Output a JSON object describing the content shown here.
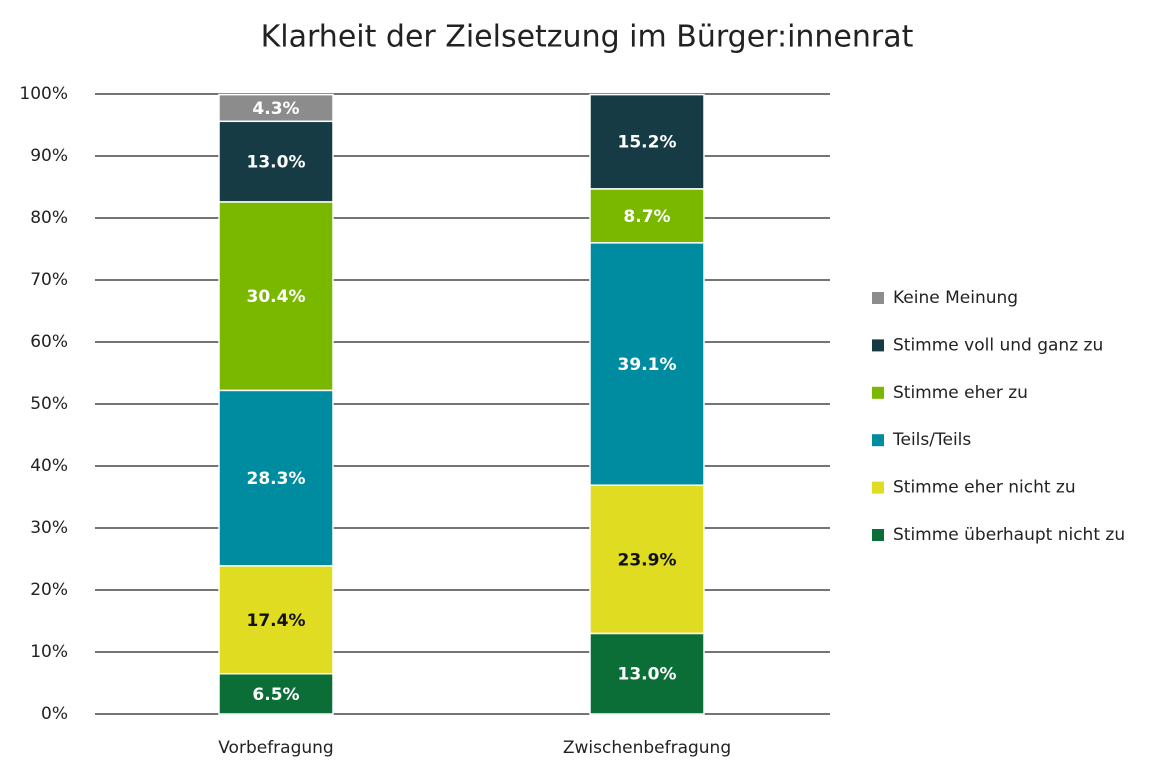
{
  "chart_data": {
    "type": "stacked_bar",
    "title": "Klarheit der Zielsetzung im Bürger:innenrat",
    "categories": [
      "Vorbefragung",
      "Zwischenbefragung"
    ],
    "ylim": [
      0,
      100
    ],
    "yticks": [
      {
        "value": 0,
        "label": "0%"
      },
      {
        "value": 10,
        "label": "10%"
      },
      {
        "value": 20,
        "label": "20%"
      },
      {
        "value": 30,
        "label": "30%"
      },
      {
        "value": 40,
        "label": "40%"
      },
      {
        "value": 50,
        "label": "50%"
      },
      {
        "value": 60,
        "label": "60%"
      },
      {
        "value": 70,
        "label": "70%"
      },
      {
        "value": 80,
        "label": "80%"
      },
      {
        "value": 90,
        "label": "90%"
      },
      {
        "value": 100,
        "label": "100%"
      }
    ],
    "grid": true,
    "legend": "right",
    "series": [
      {
        "name": "Stimme überhaupt nicht zu",
        "color": "#0b6e37",
        "label_color": "#ffffff",
        "values": [
          6.5,
          13.0
        ],
        "value_labels": [
          "6.5%",
          "13.0%"
        ]
      },
      {
        "name": "Stimme eher nicht zu",
        "color": "#dfdc22",
        "label_color": "#111111",
        "values": [
          17.4,
          23.9
        ],
        "value_labels": [
          "17.4%",
          "23.9%"
        ]
      },
      {
        "name": "Teils/Teils",
        "color": "#008ca0",
        "label_color": "#ffffff",
        "values": [
          28.3,
          39.1
        ],
        "value_labels": [
          "28.3%",
          "39.1%"
        ]
      },
      {
        "name": "Stimme eher zu",
        "color": "#7ab800",
        "label_color": "#ffffff",
        "values": [
          30.4,
          8.7
        ],
        "value_labels": [
          "30.4%",
          "8.7%"
        ]
      },
      {
        "name": "Stimme voll und ganz zu",
        "color": "#163b45",
        "label_color": "#ffffff",
        "values": [
          13.0,
          15.2
        ],
        "value_labels": [
          "13.0%",
          "15.2%"
        ]
      },
      {
        "name": "Keine Meinung",
        "color": "#8c8c8c",
        "label_color": "#ffffff",
        "values": [
          4.3,
          null
        ],
        "value_labels": [
          "4.3%",
          null
        ]
      }
    ]
  }
}
